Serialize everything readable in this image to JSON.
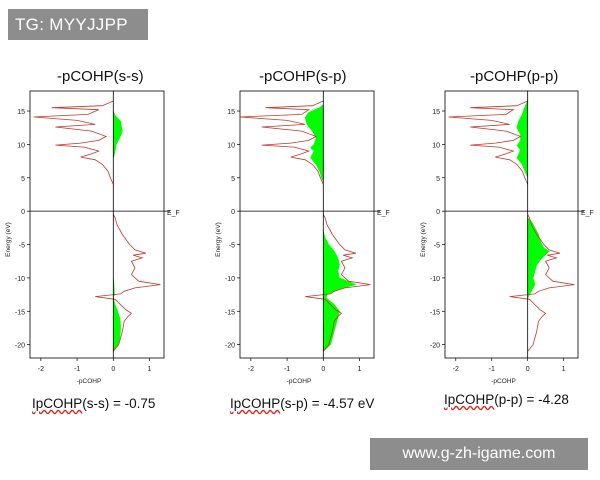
{
  "tag_label": "TG: MYYJJPP",
  "watermark": "www.g-zh-igame.com",
  "colors": {
    "fill": "#00ff00",
    "line": "#c0392b",
    "axis": "#000000",
    "tag_bg": "#8d8d8d"
  },
  "chart_data": [
    {
      "type": "area",
      "title": "-pCOHP(s-s)",
      "xlabel": "-pCOHP",
      "ylabel": "Energy (eV)",
      "fermi_label": "E_F",
      "xlim": [
        -2.3,
        1.4
      ],
      "ylim": [
        -22,
        18
      ],
      "xticks": [
        -2,
        -1,
        0,
        1
      ],
      "yticks": [
        15,
        10,
        5,
        0,
        -5,
        -10,
        -15,
        -20
      ],
      "integrated_label": "IpCOHP(s-s) = -0.75",
      "integrated_underlined": "IpCOHP",
      "integrated_rest": "(s-s) = -0.75",
      "upper_range": [
        4,
        16.5
      ],
      "lower_range": [
        -21,
        -0.5
      ],
      "total_curve": [
        [
          16.5,
          0
        ],
        [
          15.8,
          -0.3
        ],
        [
          15.5,
          -1.7
        ],
        [
          15.2,
          -0.4
        ],
        [
          14.5,
          -0.7
        ],
        [
          14.1,
          -2.2
        ],
        [
          13.6,
          -1.0
        ],
        [
          13.0,
          -0.5
        ],
        [
          12.6,
          -1.6
        ],
        [
          12.0,
          -0.6
        ],
        [
          11.2,
          -0.2
        ],
        [
          10.6,
          -0.4
        ],
        [
          10.2,
          -0.9
        ],
        [
          9.9,
          -1.6
        ],
        [
          9.6,
          -0.8
        ],
        [
          9.0,
          -0.4
        ],
        [
          8.6,
          -0.6
        ],
        [
          8.1,
          -0.9
        ],
        [
          7.7,
          -0.5
        ],
        [
          7.0,
          -0.3
        ],
        [
          6.0,
          -0.15
        ],
        [
          5.0,
          -0.08
        ],
        [
          4.0,
          0
        ],
        [
          -0.5,
          0
        ],
        [
          -1.0,
          0.05
        ],
        [
          -2.0,
          0.1
        ],
        [
          -3.5,
          0.25
        ],
        [
          -5.0,
          0.45
        ],
        [
          -5.8,
          0.6
        ],
        [
          -6.3,
          0.9
        ],
        [
          -6.6,
          0.55
        ],
        [
          -7.0,
          0.8
        ],
        [
          -7.5,
          0.5
        ],
        [
          -8.5,
          0.6
        ],
        [
          -9.5,
          0.5
        ],
        [
          -10.5,
          0.7
        ],
        [
          -11.0,
          1.3
        ],
        [
          -11.5,
          0.6
        ],
        [
          -12.0,
          0.3
        ],
        [
          -12.4,
          0.2
        ],
        [
          -12.8,
          -0.5
        ],
        [
          -13.2,
          0.05
        ],
        [
          -14.0,
          0.2
        ],
        [
          -14.8,
          0.35
        ],
        [
          -15.3,
          0.5
        ],
        [
          -15.8,
          0.4
        ],
        [
          -16.5,
          0.3
        ],
        [
          -18.0,
          0.25
        ],
        [
          -20.0,
          0.15
        ],
        [
          -21.0,
          0
        ]
      ],
      "fill_curve": [
        [
          15.0,
          0
        ],
        [
          14.3,
          0.05
        ],
        [
          13.5,
          0.2
        ],
        [
          12.8,
          0.22
        ],
        [
          12.0,
          0.25
        ],
        [
          11.0,
          0.18
        ],
        [
          10.0,
          0.08
        ],
        [
          9.0,
          0.05
        ],
        [
          8.2,
          0.02
        ],
        [
          8.0,
          0
        ],
        [
          -10.0,
          0
        ],
        [
          -11.0,
          0.02
        ],
        [
          -12.5,
          0.03
        ],
        [
          -13.0,
          0
        ],
        [
          -14.0,
          0.05
        ],
        [
          -15.0,
          0.12
        ],
        [
          -16.0,
          0.18
        ],
        [
          -17.0,
          0.2
        ],
        [
          -18.0,
          0.2
        ],
        [
          -19.0,
          0.18
        ],
        [
          -20.0,
          0.13
        ],
        [
          -21.0,
          0
        ]
      ]
    },
    {
      "type": "area",
      "title": "-pCOHP(s-p)",
      "xlabel": "-pCOHP",
      "ylabel": "Energy (eV)",
      "fermi_label": "E_F",
      "xlim": [
        -2.3,
        1.4
      ],
      "ylim": [
        -22,
        18
      ],
      "xticks": [
        -2,
        -1,
        0,
        1
      ],
      "yticks": [
        15,
        10,
        5,
        0,
        -5,
        -10,
        -15,
        -20
      ],
      "integrated_label": "IpCOHP(s-p) = -4.57 eV",
      "integrated_underlined": "IpCOHP",
      "integrated_rest": "(s-p) = -4.57 eV",
      "upper_range": [
        4,
        16.5
      ],
      "lower_range": [
        -21,
        -0.5
      ],
      "total_curve": [
        [
          16.5,
          0
        ],
        [
          15.8,
          -0.3
        ],
        [
          15.5,
          -1.6
        ],
        [
          15.2,
          -0.4
        ],
        [
          14.5,
          -0.6
        ],
        [
          14.1,
          -2.3
        ],
        [
          13.6,
          -1.0
        ],
        [
          13.0,
          -0.5
        ],
        [
          12.6,
          -1.7
        ],
        [
          12.0,
          -0.6
        ],
        [
          11.2,
          -0.2
        ],
        [
          10.6,
          -0.4
        ],
        [
          10.2,
          -0.9
        ],
        [
          9.9,
          -1.7
        ],
        [
          9.6,
          -0.8
        ],
        [
          9.0,
          -0.4
        ],
        [
          8.6,
          -0.6
        ],
        [
          8.1,
          -0.9
        ],
        [
          7.7,
          -0.5
        ],
        [
          7.0,
          -0.3
        ],
        [
          6.0,
          -0.15
        ],
        [
          5.0,
          -0.08
        ],
        [
          4.0,
          0
        ],
        [
          -0.5,
          0
        ],
        [
          -1.0,
          0.05
        ],
        [
          -2.0,
          0.1
        ],
        [
          -3.5,
          0.25
        ],
        [
          -5.0,
          0.45
        ],
        [
          -5.8,
          0.6
        ],
        [
          -6.3,
          0.9
        ],
        [
          -6.6,
          0.55
        ],
        [
          -7.0,
          0.8
        ],
        [
          -7.5,
          0.5
        ],
        [
          -8.5,
          0.6
        ],
        [
          -9.5,
          0.5
        ],
        [
          -10.5,
          0.7
        ],
        [
          -11.0,
          1.3
        ],
        [
          -11.5,
          0.6
        ],
        [
          -12.0,
          0.3
        ],
        [
          -12.4,
          0.2
        ],
        [
          -12.8,
          -0.5
        ],
        [
          -13.2,
          0.05
        ],
        [
          -14.0,
          0.2
        ],
        [
          -14.8,
          0.35
        ],
        [
          -15.3,
          0.5
        ],
        [
          -15.8,
          0.4
        ],
        [
          -16.5,
          0.3
        ],
        [
          -18.0,
          0.25
        ],
        [
          -20.0,
          0.15
        ],
        [
          -21.0,
          0
        ]
      ],
      "fill_curve": [
        [
          16.0,
          0
        ],
        [
          15.5,
          -0.1
        ],
        [
          14.8,
          -0.4
        ],
        [
          14.0,
          -0.5
        ],
        [
          13.0,
          -0.45
        ],
        [
          12.0,
          -0.3
        ],
        [
          11.0,
          -0.2
        ],
        [
          10.0,
          -0.25
        ],
        [
          9.5,
          -0.35
        ],
        [
          9.0,
          -0.25
        ],
        [
          8.5,
          -0.3
        ],
        [
          8.0,
          -0.35
        ],
        [
          7.0,
          -0.2
        ],
        [
          6.0,
          -0.1
        ],
        [
          5.0,
          -0.05
        ],
        [
          4.5,
          0
        ],
        [
          -3.0,
          0
        ],
        [
          -4.0,
          0.05
        ],
        [
          -5.0,
          0.15
        ],
        [
          -6.0,
          0.3
        ],
        [
          -7.0,
          0.4
        ],
        [
          -8.0,
          0.45
        ],
        [
          -9.0,
          0.4
        ],
        [
          -10.0,
          0.45
        ],
        [
          -11.0,
          0.9
        ],
        [
          -11.5,
          0.55
        ],
        [
          -12.0,
          0.3
        ],
        [
          -12.5,
          0.1
        ],
        [
          -13.0,
          0.08
        ],
        [
          -14.0,
          0.3
        ],
        [
          -15.0,
          0.45
        ],
        [
          -16.0,
          0.4
        ],
        [
          -17.0,
          0.35
        ],
        [
          -18.0,
          0.3
        ],
        [
          -19.0,
          0.25
        ],
        [
          -20.0,
          0.2
        ],
        [
          -21.0,
          0
        ]
      ]
    },
    {
      "type": "area",
      "title": "-pCOHP(p-p)",
      "xlabel": "-pCOHP",
      "ylabel": "Energy (eV)",
      "fermi_label": "E_F",
      "xlim": [
        -2.3,
        1.4
      ],
      "ylim": [
        -22,
        18
      ],
      "xticks": [
        -2,
        -1,
        0,
        1
      ],
      "yticks": [
        15,
        10,
        5,
        0,
        -5,
        -10,
        -15,
        -20
      ],
      "integrated_label": "IpCOHP(p-p) = -4.28",
      "integrated_underlined": "IpCOHP",
      "integrated_rest": "(p-p) = -4.28",
      "upper_range": [
        4,
        16.5
      ],
      "lower_range": [
        -21,
        -0.5
      ],
      "total_curve": [
        [
          16.5,
          0
        ],
        [
          15.8,
          -0.3
        ],
        [
          15.5,
          -1.6
        ],
        [
          15.2,
          -0.4
        ],
        [
          14.5,
          -0.6
        ],
        [
          14.1,
          -2.2
        ],
        [
          13.6,
          -1.0
        ],
        [
          13.0,
          -0.5
        ],
        [
          12.6,
          -1.6
        ],
        [
          12.0,
          -0.6
        ],
        [
          11.2,
          -0.2
        ],
        [
          10.6,
          -0.4
        ],
        [
          10.2,
          -0.9
        ],
        [
          9.9,
          -1.6
        ],
        [
          9.6,
          -0.8
        ],
        [
          9.0,
          -0.4
        ],
        [
          8.6,
          -0.6
        ],
        [
          8.1,
          -0.9
        ],
        [
          7.7,
          -0.5
        ],
        [
          7.0,
          -0.3
        ],
        [
          6.0,
          -0.15
        ],
        [
          5.0,
          -0.08
        ],
        [
          4.0,
          0
        ],
        [
          -0.5,
          0
        ],
        [
          -1.0,
          0.05
        ],
        [
          -2.0,
          0.1
        ],
        [
          -3.5,
          0.25
        ],
        [
          -5.0,
          0.45
        ],
        [
          -5.8,
          0.6
        ],
        [
          -6.3,
          0.9
        ],
        [
          -6.6,
          0.55
        ],
        [
          -7.0,
          0.8
        ],
        [
          -7.5,
          0.5
        ],
        [
          -8.5,
          0.6
        ],
        [
          -9.5,
          0.5
        ],
        [
          -10.5,
          0.7
        ],
        [
          -11.0,
          1.3
        ],
        [
          -11.5,
          0.6
        ],
        [
          -12.0,
          0.3
        ],
        [
          -12.4,
          0.2
        ],
        [
          -12.8,
          -0.5
        ],
        [
          -13.2,
          0.05
        ],
        [
          -14.0,
          0.2
        ],
        [
          -14.8,
          0.35
        ],
        [
          -15.3,
          0.5
        ],
        [
          -15.8,
          0.4
        ],
        [
          -16.5,
          0.3
        ],
        [
          -18.0,
          0.25
        ],
        [
          -20.0,
          0.15
        ],
        [
          -21.0,
          0
        ]
      ],
      "fill_curve": [
        [
          16.5,
          0
        ],
        [
          16.0,
          -0.05
        ],
        [
          15.3,
          -0.1
        ],
        [
          14.5,
          -0.15
        ],
        [
          13.5,
          -0.25
        ],
        [
          12.5,
          -0.3
        ],
        [
          11.5,
          -0.2
        ],
        [
          10.5,
          -0.2
        ],
        [
          9.8,
          -0.3
        ],
        [
          9.2,
          -0.2
        ],
        [
          8.5,
          -0.25
        ],
        [
          8.0,
          -0.3
        ],
        [
          7.0,
          -0.15
        ],
        [
          6.0,
          -0.08
        ],
        [
          5.0,
          0
        ],
        [
          -1.0,
          0
        ],
        [
          -1.5,
          0.1
        ],
        [
          -2.5,
          0.2
        ],
        [
          -3.5,
          0.3
        ],
        [
          -4.5,
          0.35
        ],
        [
          -5.5,
          0.45
        ],
        [
          -6.0,
          0.6
        ],
        [
          -6.5,
          0.5
        ],
        [
          -7.0,
          0.4
        ],
        [
          -8.0,
          0.25
        ],
        [
          -9.0,
          0.2
        ],
        [
          -10.0,
          0.15
        ],
        [
          -11.0,
          0.2
        ],
        [
          -12.0,
          0.1
        ],
        [
          -12.5,
          0.05
        ],
        [
          -13.0,
          0
        ]
      ]
    }
  ]
}
